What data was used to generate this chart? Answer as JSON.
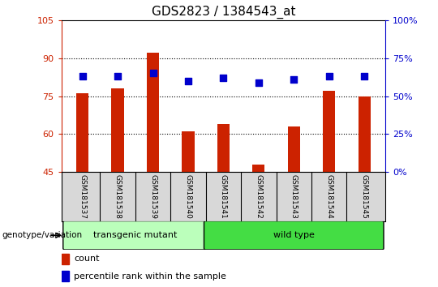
{
  "title": "GDS2823 / 1384543_at",
  "samples": [
    "GSM181537",
    "GSM181538",
    "GSM181539",
    "GSM181540",
    "GSM181541",
    "GSM181542",
    "GSM181543",
    "GSM181544",
    "GSM181545"
  ],
  "counts": [
    76,
    78,
    92,
    61,
    64,
    48,
    63,
    77,
    75
  ],
  "percentile_ranks": [
    63,
    63,
    65,
    60,
    62,
    59,
    61,
    63,
    63
  ],
  "ylim_left": [
    45,
    105
  ],
  "ylim_right": [
    0,
    100
  ],
  "yticks_left": [
    45,
    60,
    75,
    90,
    105
  ],
  "yticks_right": [
    0,
    25,
    50,
    75,
    100
  ],
  "bar_color": "#cc2200",
  "dot_color": "#0000cc",
  "grid_yticks": [
    60,
    75,
    90
  ],
  "transgenic_samples": 4,
  "wild_type_samples": 5,
  "transgenic_label": "transgenic mutant",
  "wild_type_label": "wild type",
  "genotype_label": "genotype/variation",
  "legend_count": "count",
  "legend_percentile": "percentile rank within the sample",
  "transgenic_color": "#bbffbb",
  "wild_type_color": "#44dd44",
  "sample_box_color": "#d8d8d8",
  "right_axis_color": "#0000cc",
  "left_axis_color": "#cc2200",
  "background_color": "#ffffff",
  "bar_width": 0.35,
  "dot_size": 30
}
